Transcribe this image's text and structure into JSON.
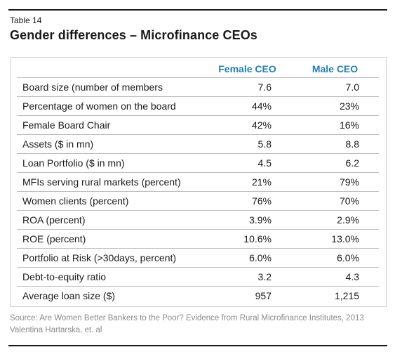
{
  "table": {
    "number": "Table 14",
    "title": "Gender differences – Microfinance CEOs",
    "columns": [
      "",
      "Female CEO",
      "Male CEO"
    ],
    "rows": [
      {
        "label": "Board size (number of members",
        "female": "7.6",
        "male": "7.0"
      },
      {
        "label": "Percentage of women on the board",
        "female": "44%",
        "male": "23%"
      },
      {
        "label": "Female Board Chair",
        "female": "42%",
        "male": "16%"
      },
      {
        "label": "Assets ($ in mn)",
        "female": "5.8",
        "male": "8.8"
      },
      {
        "label": "Loan Portfolio ($ in mn)",
        "female": "4.5",
        "male": "6.2"
      },
      {
        "label": "MFIs serving rural markets (percent)",
        "female": "21%",
        "male": "79%"
      },
      {
        "label": "Women clients (percent)",
        "female": "76%",
        "male": "70%"
      },
      {
        "label": "ROA (percent)",
        "female": "3.9%",
        "male": "2.9%"
      },
      {
        "label": "ROE (percent)",
        "female": "10.6%",
        "male": "13.0%"
      },
      {
        "label": "Portfolio at Risk (>30days, percent)",
        "female": "6.0%",
        "male": "6.0%"
      },
      {
        "label": "Debt-to-equity ratio",
        "female": "3.2",
        "male": "4.3"
      },
      {
        "label": "Average loan size ($)",
        "female": "957",
        "male": "1,215"
      }
    ]
  },
  "source": {
    "line1": "Source: Are Women Better Bankers to the Poor? Evidence from Rural Microfinance Institutes, 2013",
    "line2": "Valentina Hartarska, et. al"
  },
  "colors": {
    "header_text": "#1f7fb5",
    "rule": "#1a1a1a",
    "source_text": "#8a8a8a"
  }
}
